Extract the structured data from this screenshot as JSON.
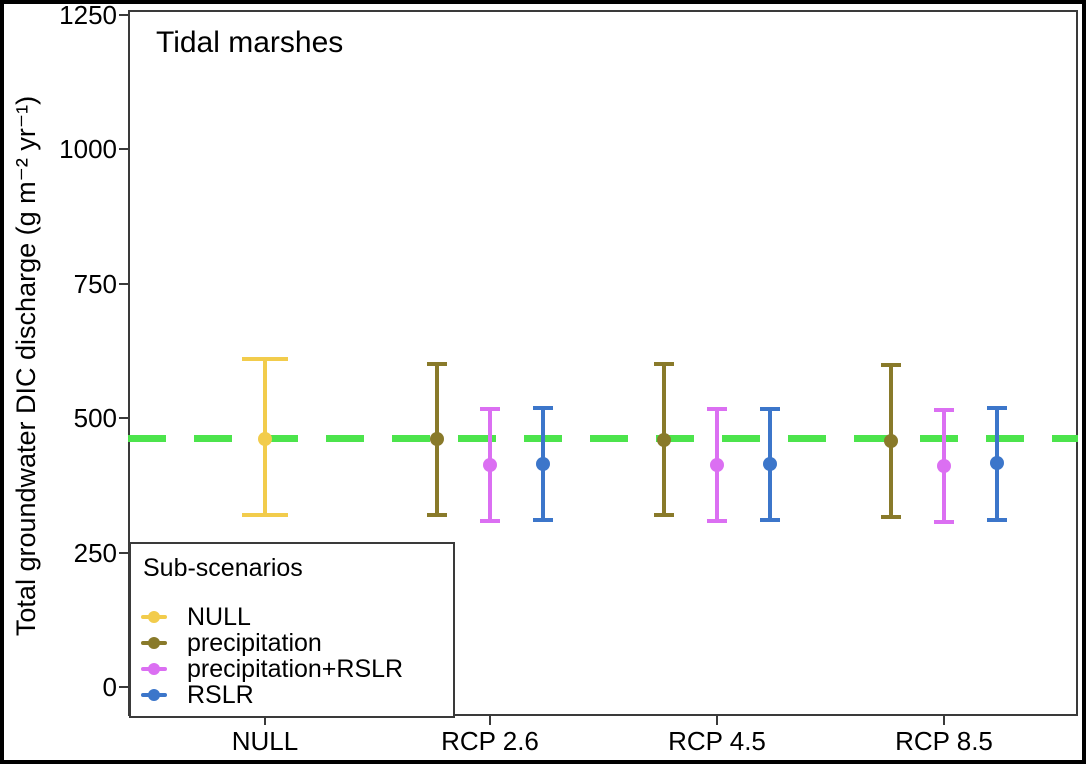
{
  "chart_data": {
    "type": "errorbar",
    "title": "Tidal marshes",
    "xlabel": "",
    "ylabel": "Total groundwater DIC discharge (g m⁻² yr⁻¹)",
    "ylim": [
      0,
      1250
    ],
    "yticks": [
      0,
      250,
      500,
      750,
      1000,
      1250
    ],
    "ytick_labels": [
      "0",
      "250",
      "500",
      "750",
      "1000",
      "1250"
    ],
    "categories": [
      "NULL",
      "RCP 2.6",
      "RCP 4.5",
      "RCP 8.5"
    ],
    "grid": false,
    "legend": {
      "title": "Sub-scenarios",
      "position": "bottom-left",
      "entries": [
        {
          "label": "NULL",
          "color": "#F2CC4C"
        },
        {
          "label": "precipitation",
          "color": "#897A2A"
        },
        {
          "label": "precipitation+RSLR",
          "color": "#DB6FF2"
        },
        {
          "label": "RSLR",
          "color": "#3C76CA"
        }
      ]
    },
    "reference_line": {
      "value": 463,
      "color": "#4CE44C",
      "style": "dashed"
    },
    "series": [
      {
        "name": "NULL",
        "color": "#F2CC4C",
        "points": [
          {
            "category": "NULL",
            "mean": 462,
            "lower": 320,
            "upper": 610
          }
        ]
      },
      {
        "name": "precipitation",
        "color": "#897A2A",
        "points": [
          {
            "category": "RCP 2.6",
            "mean": 461,
            "lower": 320,
            "upper": 601
          },
          {
            "category": "RCP 4.5",
            "mean": 460,
            "lower": 320,
            "upper": 601
          },
          {
            "category": "RCP 8.5",
            "mean": 458,
            "lower": 317,
            "upper": 599
          }
        ]
      },
      {
        "name": "precipitation+RSLR",
        "color": "#DB6FF2",
        "points": [
          {
            "category": "RCP 2.6",
            "mean": 413,
            "lower": 309,
            "upper": 517
          },
          {
            "category": "RCP 4.5",
            "mean": 413,
            "lower": 309,
            "upper": 517
          },
          {
            "category": "RCP 8.5",
            "mean": 411,
            "lower": 307,
            "upper": 515
          }
        ]
      },
      {
        "name": "RSLR",
        "color": "#3C76CA",
        "points": [
          {
            "category": "RCP 2.6",
            "mean": 414,
            "lower": 311,
            "upper": 519
          },
          {
            "category": "RCP 4.5",
            "mean": 414,
            "lower": 311,
            "upper": 518
          },
          {
            "category": "RCP 8.5",
            "mean": 416,
            "lower": 311,
            "upper": 519
          }
        ]
      }
    ]
  }
}
